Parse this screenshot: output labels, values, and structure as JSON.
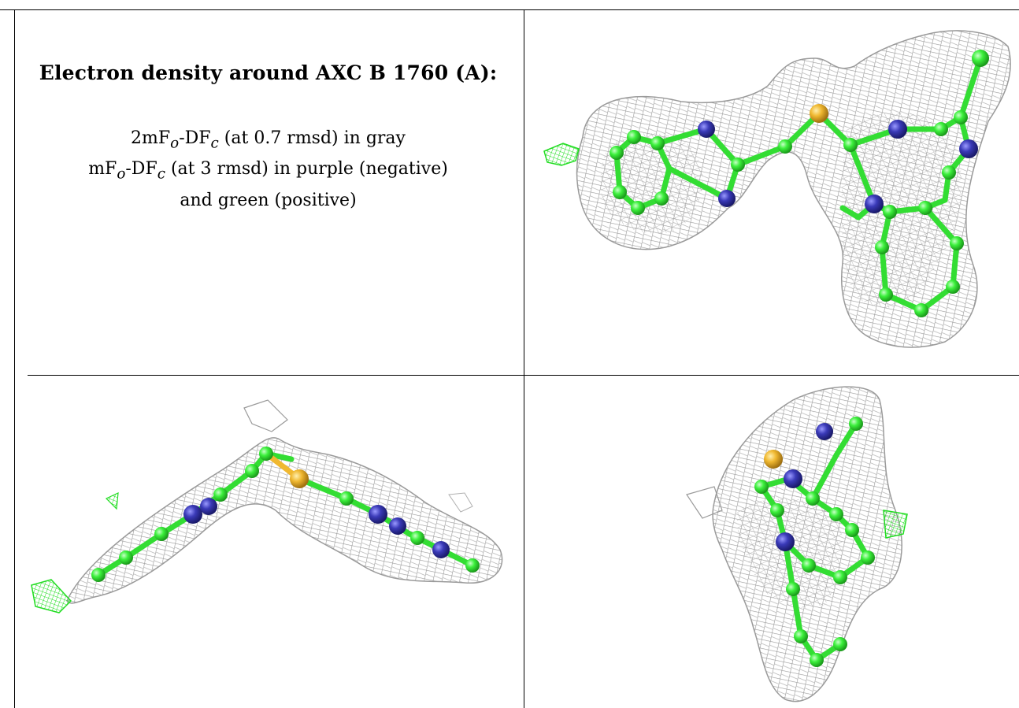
{
  "caption": {
    "title": "Electron density around AXC B 1760 (A):",
    "line1": {
      "prefix": "2mF",
      "sub1": "o",
      "mid": "-DF",
      "sub2": "c",
      "suffix": " (at 0.7 rmsd) in gray"
    },
    "line2": {
      "prefix": "mF",
      "sub1": "o",
      "mid": "-DF",
      "sub2": "c",
      "suffix": " (at 3 rmsd) in purple (negative)"
    },
    "line3": "and green (positive)"
  },
  "colors": {
    "mesh": "#9a9a9a",
    "carbon": "#3cf03c",
    "nitrogen": "#3a3ab8",
    "sulfur": "#f0b830",
    "positive_density": "#22dd22",
    "border": "#000000"
  }
}
